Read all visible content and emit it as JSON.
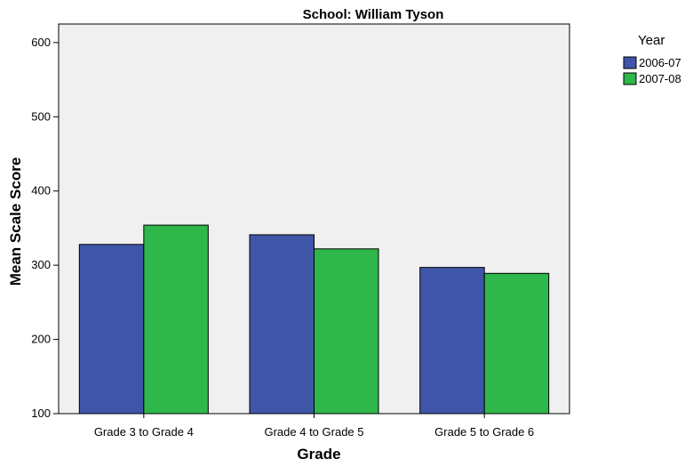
{
  "chart_data": {
    "type": "bar",
    "title": "School: William Tyson",
    "xlabel": "Grade",
    "ylabel": "Mean Scale Score",
    "categories": [
      "Grade 3 to Grade 4",
      "Grade 4 to Grade 5",
      "Grade 5 to Grade 6"
    ],
    "series": [
      {
        "name": "2006-07",
        "values": [
          328,
          341,
          297
        ],
        "color": "#3f56a8"
      },
      {
        "name": "2007-08",
        "values": [
          354,
          322,
          289
        ],
        "color": "#2eb74a"
      }
    ],
    "ylim": [
      100,
      625
    ],
    "yticks": [
      100,
      200,
      300,
      400,
      500,
      600
    ],
    "legend": {
      "title": "Year",
      "position": "top-right"
    },
    "grid": false,
    "plot_background": "#f0f0f0"
  }
}
